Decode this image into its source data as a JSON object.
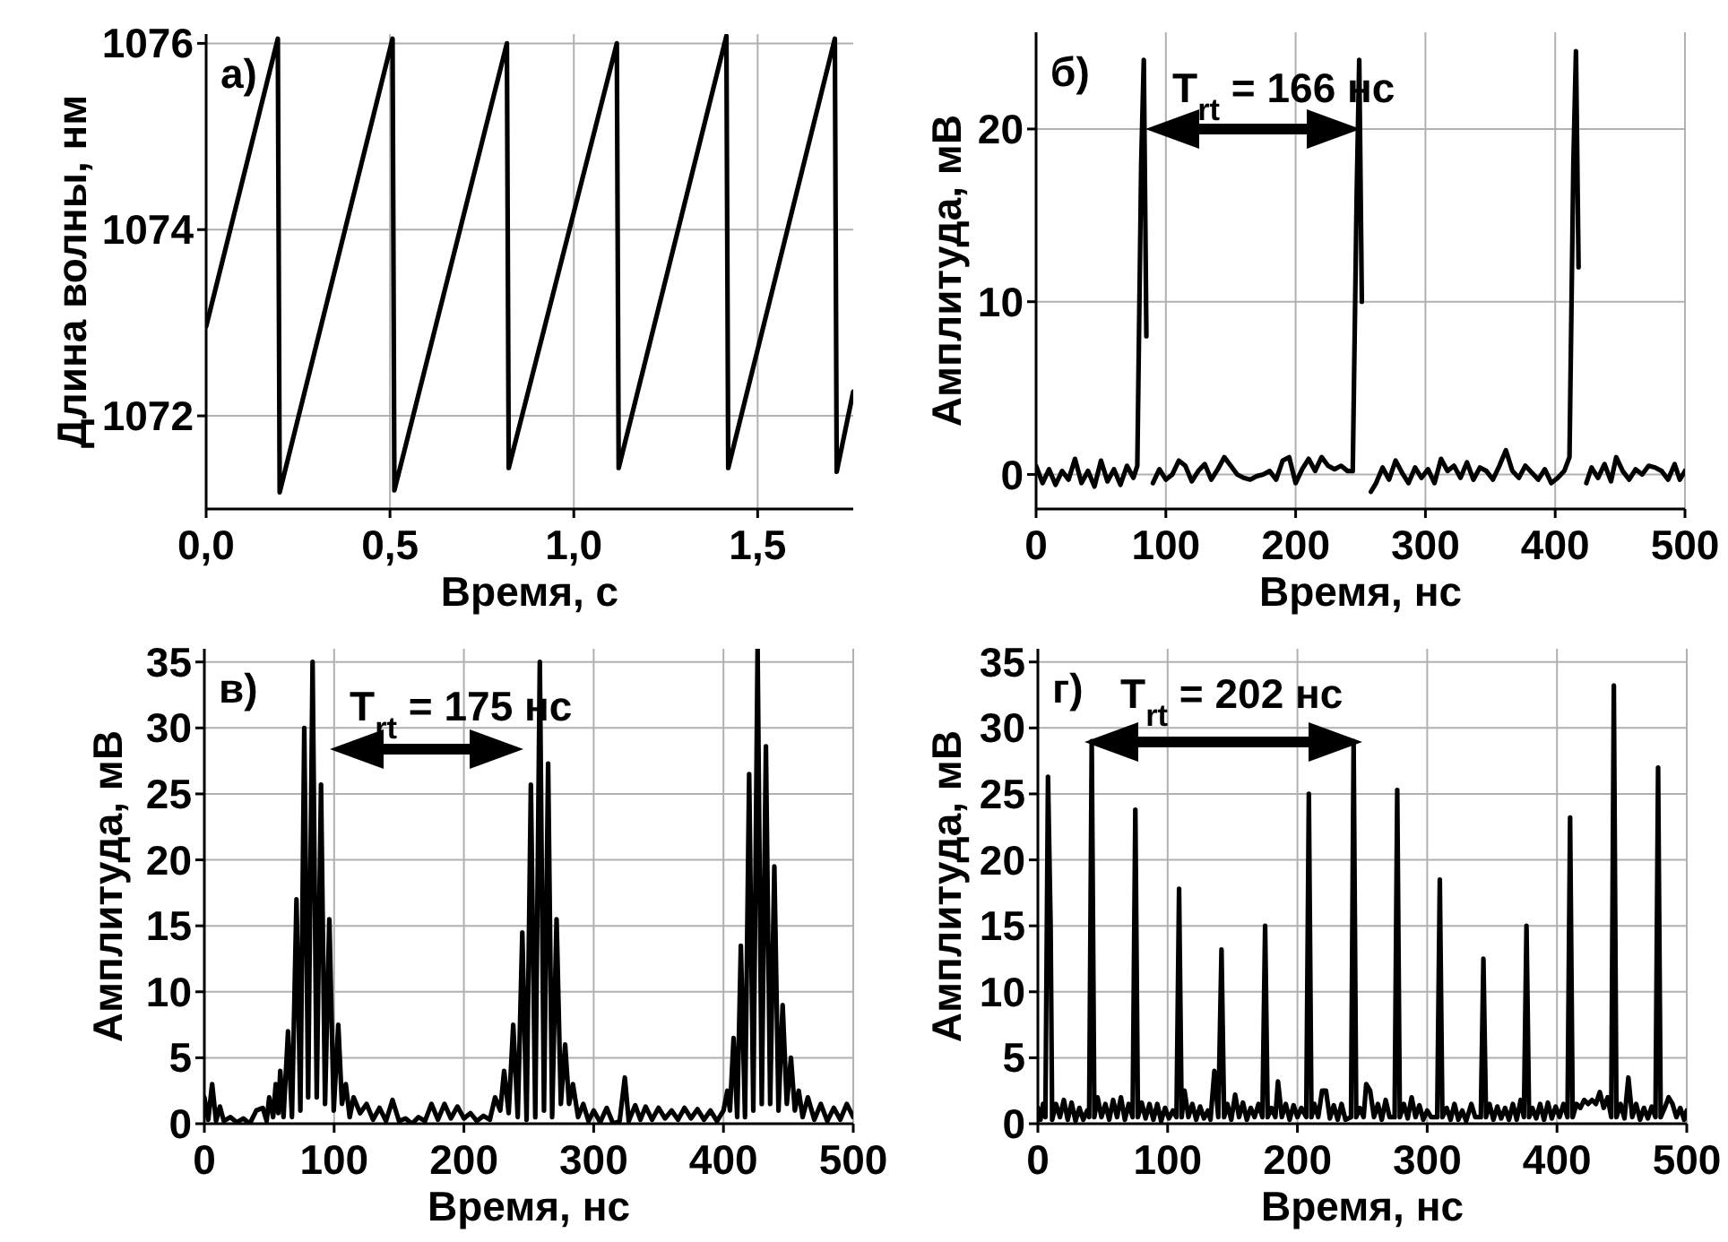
{
  "chart_data": [
    {
      "type": "line",
      "xlabel": "Время, с",
      "ylabel": "Длина волны, нм",
      "xlim": [
        0,
        1.76
      ],
      "ylim": [
        1071,
        1076.1
      ],
      "xticks": [
        {
          "value": 0,
          "label": "0,0"
        },
        {
          "value": 0.5,
          "label": "0,5"
        },
        {
          "value": 1,
          "label": "1,0"
        },
        {
          "value": 1.5,
          "label": "1,5"
        }
      ],
      "yticks": [
        1072,
        1074,
        1076
      ],
      "grid": true,
      "annotations": [
        "а)"
      ],
      "series": [
        {
          "color": "#000000",
          "x": [
            0,
            0.195,
            0.2,
            0.507,
            0.512,
            0.818,
            0.823,
            1.117,
            1.122,
            1.415,
            1.42,
            1.71,
            1.715,
            1.76
          ],
          "values": [
            1072.96,
            1076.05,
            1071.18,
            1076.05,
            1071.2,
            1076.0,
            1071.44,
            1076.0,
            1071.44,
            1076.08,
            1071.44,
            1076.05,
            1071.4,
            1072.26
          ]
        }
      ]
    },
    {
      "type": "line",
      "xlabel": "Время, нс",
      "ylabel": "Амплитуда, мВ",
      "xlim": [
        0,
        500
      ],
      "ylim": [
        -2,
        25.6
      ],
      "xticks": [
        0,
        100,
        200,
        300,
        400,
        500
      ],
      "yticks": [
        0,
        10,
        20
      ],
      "grid": true,
      "annotations": [
        "б)",
        "T$_{rt}$ = 166 нс"
      ],
      "series": [
        {
          "color": "#000000",
          "x": [
            0,
            5,
            10,
            15,
            20,
            25,
            30,
            35,
            40,
            45,
            50,
            55,
            60,
            65,
            70,
            75,
            78,
            81,
            83,
            85,
            87,
            90,
            95,
            100,
            105,
            110,
            115,
            120,
            125,
            130,
            135,
            140,
            145,
            150,
            155,
            160,
            165,
            170,
            175,
            180,
            185,
            190,
            195,
            200,
            205,
            210,
            215,
            220,
            225,
            230,
            235,
            240,
            244,
            247,
            249,
            251,
            254,
            258,
            262,
            267,
            272,
            277,
            282,
            287,
            292,
            297,
            302,
            307,
            312,
            317,
            322,
            327,
            332,
            337,
            342,
            347,
            352,
            357,
            362,
            367,
            372,
            377,
            382,
            387,
            392,
            397,
            402,
            407,
            411,
            414,
            416,
            418,
            420,
            424,
            428,
            433,
            438,
            443,
            447,
            452,
            457,
            462,
            467,
            472,
            477,
            482,
            487,
            492,
            496,
            500
          ],
          "values": [
            0.5,
            -0.5,
            0.3,
            -0.6,
            0.2,
            -0.3,
            0.9,
            -0.5,
            0.2,
            -0.7,
            0.8,
            -0.4,
            0.3,
            -0.6,
            0.5,
            -0.2,
            0.5,
            18,
            24,
            8,
            null,
            -0.5,
            0.3,
            -0.3,
            0,
            0.8,
            0.5,
            -0.4,
            0.2,
            0.6,
            -0.3,
            0.3,
            1,
            0.5,
            0,
            -0.2,
            -0.3,
            -0.1,
            0,
            0.2,
            -0.3,
            0.8,
            1,
            -0.5,
            0.3,
            0.9,
            0.2,
            1,
            0.5,
            0.3,
            0.5,
            0.2,
            0.2,
            16,
            24,
            10,
            null,
            -1,
            -0.5,
            0.4,
            -0.3,
            0.8,
            0.1,
            -0.5,
            0.4,
            -0.2,
            0.3,
            -0.5,
            0.9,
            0.2,
            0.5,
            -0.2,
            0.7,
            -0.3,
            0.4,
            0.2,
            -0.3,
            0.5,
            1.4,
            0.2,
            -0.2,
            0.5,
            0.1,
            -0.3,
            0.3,
            -0.5,
            -0.2,
            0.2,
            1,
            18,
            24.5,
            12,
            null,
            -0.5,
            0.4,
            -0.2,
            0.6,
            -0.4,
            1,
            0.2,
            -0.3,
            0.3,
            0,
            0.5,
            0.4,
            0.2,
            -0.3,
            0.6,
            -0.3,
            0.2
          ]
        }
      ]
    },
    {
      "type": "line",
      "xlabel": "Время, нс",
      "ylabel": "Амплитуда, мВ",
      "xlim": [
        0,
        500
      ],
      "ylim": [
        0,
        36
      ],
      "xticks": [
        0,
        100,
        200,
        300,
        400,
        500
      ],
      "yticks": [
        0,
        5,
        10,
        15,
        20,
        25,
        30,
        35
      ],
      "grid": true,
      "annotations": [
        "в)",
        "T$_{rt}$ = 175 нс"
      ],
      "series": [
        {
          "color": "#000000",
          "x": [
            0,
            3,
            6,
            9,
            12,
            15,
            20,
            25,
            30,
            35,
            40,
            45,
            48,
            50,
            53,
            55,
            57,
            58.5,
            61,
            64.5,
            67.5,
            71,
            74,
            77,
            80,
            83.4,
            86.6,
            89.9,
            93,
            96.3,
            99.7,
            103.2,
            106,
            109,
            112,
            115,
            120,
            125,
            130,
            135,
            140,
            145,
            150,
            155,
            160,
            165,
            170,
            175,
            180,
            185,
            190,
            195,
            200,
            205,
            210,
            215,
            220,
            224,
            228,
            231,
            234.5,
            238,
            241.5,
            245,
            248.3,
            251.6,
            255,
            258.5,
            261.7,
            264.9,
            268,
            271.4,
            274.7,
            278,
            281,
            284,
            288,
            292,
            296,
            300,
            305,
            310,
            315,
            320,
            324,
            327,
            332,
            336,
            340,
            345,
            350,
            355,
            360,
            365,
            370,
            375,
            380,
            385,
            390,
            395,
            400,
            403,
            405,
            407.8,
            410.6,
            413.4,
            416.6,
            419.8,
            423,
            426.3,
            429.5,
            432.7,
            436,
            439.2,
            442.4,
            445.6,
            448.8,
            452,
            455,
            458,
            461,
            465,
            470,
            475,
            480,
            485,
            490,
            495,
            500
          ],
          "values": [
            2,
            0.3,
            3,
            0.2,
            1.3,
            0.2,
            0.5,
            0.1,
            0.4,
            0,
            1,
            1.2,
            0.2,
            2,
            0.5,
            3,
            0.8,
            4,
            0.5,
            7,
            0.5,
            17,
            1,
            30,
            2,
            35,
            2,
            25.7,
            1.5,
            15.5,
            1,
            7.5,
            1.5,
            3,
            0.5,
            2,
            0.8,
            1.5,
            0.3,
            1.2,
            0.2,
            1.8,
            0.2,
            0.4,
            0,
            0.5,
            0.2,
            1.5,
            0.3,
            1.5,
            0.4,
            1.3,
            0.4,
            0.8,
            0.2,
            0.6,
            0.3,
            2,
            1,
            4,
            0.8,
            7.5,
            0.5,
            14.5,
            0.3,
            25.7,
            0.5,
            35,
            1,
            27.3,
            0.5,
            15.5,
            1.5,
            6,
            1.5,
            3,
            0.5,
            1.5,
            0.2,
            1,
            0.1,
            1.2,
            0,
            0.2,
            3.5,
            0.2,
            1.4,
            0.3,
            1.3,
            0.3,
            1.2,
            0.4,
            1,
            0.3,
            1.2,
            0.4,
            1.1,
            0.3,
            1,
            0.2,
            1,
            2.5,
            1,
            6.5,
            0.5,
            13.5,
            0.5,
            26.5,
            1,
            36,
            1.5,
            28.6,
            1.5,
            19.5,
            1,
            9,
            1.5,
            5,
            1,
            2.5,
            0.5,
            2,
            0.3,
            1.5,
            0.2,
            1.2,
            0.3,
            1.5,
            0.5
          ]
        }
      ]
    },
    {
      "type": "line",
      "xlabel": "Время, нс",
      "ylabel": "Амплитуда, мВ",
      "xlim": [
        0,
        500
      ],
      "ylim": [
        0,
        36
      ],
      "xticks": [
        0,
        100,
        200,
        300,
        400,
        500
      ],
      "yticks": [
        0,
        5,
        10,
        15,
        20,
        25,
        30,
        35
      ],
      "grid": true,
      "annotations": [
        "г)",
        "T$_{rt}$ = 202 нс"
      ],
      "series": [
        {
          "color": "#000000",
          "x": [
            0,
            2,
            4,
            5.8,
            7.8,
            9.8,
            11,
            14,
            17,
            20,
            23,
            26,
            29,
            32,
            35,
            38,
            39.5,
            41.5,
            43.5,
            46,
            49,
            52,
            55,
            58,
            61,
            64,
            67,
            70,
            73,
            75.1,
            77.1,
            80,
            83,
            86,
            89,
            92,
            95,
            98,
            101,
            104,
            106.8,
            108.8,
            110.8,
            113,
            116,
            119,
            122,
            125,
            128,
            131,
            133,
            136,
            139,
            141.5,
            143.5,
            146,
            149,
            152,
            155,
            158,
            161,
            164,
            167,
            170,
            173,
            175.1,
            177.1,
            180,
            183,
            185,
            188,
            191,
            194,
            197,
            200,
            203,
            206.8,
            208.8,
            210.8,
            213,
            216,
            219,
            222,
            225,
            228,
            231,
            234,
            237,
            241.3,
            243.3,
            245.3,
            248,
            251,
            253,
            256,
            259,
            262,
            265,
            268,
            271,
            274.9,
            276.9,
            278.9,
            282,
            285,
            288,
            291,
            294,
            297,
            300,
            303,
            307.7,
            309.7,
            311.7,
            315,
            318,
            321,
            324,
            327,
            330,
            334,
            337,
            341.3,
            343.3,
            345.3,
            348,
            351,
            354,
            357,
            360,
            363,
            366,
            369,
            372,
            374.5,
            376.5,
            378.5,
            381,
            384,
            387,
            390,
            393,
            396,
            399,
            402,
            405,
            408.1,
            410.1,
            412.1,
            415,
            418,
            421,
            424,
            427,
            430,
            433,
            436,
            439,
            441.8,
            443.8,
            445.8,
            449,
            452,
            455,
            458,
            461,
            464,
            467,
            470,
            473,
            475.9,
            477.9,
            479.9,
            483,
            486,
            489,
            492,
            495,
            498,
            500
          ],
          "values": [
            1.2,
            0.3,
            1.5,
            0.5,
            26.3,
            15,
            0.3,
            1.5,
            0.5,
            1.8,
            0.3,
            1.6,
            0.2,
            1.2,
            0.3,
            1,
            0.5,
            29,
            0.5,
            2,
            0.5,
            1.5,
            0.3,
            1.8,
            0.5,
            2,
            0.3,
            1.5,
            0.5,
            23.8,
            0.5,
            1.6,
            0.4,
            1.5,
            0.3,
            1.5,
            0.2,
            1.2,
            0.4,
            1,
            0.5,
            17.8,
            0.5,
            2.5,
            0.5,
            1.5,
            0.3,
            1.3,
            0.4,
            1,
            0.3,
            4,
            0.5,
            13.2,
            0.5,
            1.5,
            0.3,
            2.2,
            0.5,
            1.6,
            0.3,
            1.2,
            0.5,
            1.5,
            0.5,
            15,
            0.5,
            1.2,
            0.5,
            3.2,
            0.5,
            1.5,
            0.3,
            1.4,
            0.5,
            1.2,
            0.5,
            25,
            0.5,
            1.5,
            0.5,
            2.5,
            2.5,
            0.4,
            1.4,
            0.3,
            1.5,
            0.3,
            0.5,
            29,
            0.5,
            1.2,
            0.5,
            3,
            2.5,
            0.5,
            1.5,
            0.3,
            1.8,
            0.5,
            0.5,
            25.3,
            0.5,
            1.5,
            0.4,
            2,
            0.5,
            1.4,
            0.3,
            1,
            0.5,
            0.5,
            18.5,
            0.5,
            1.2,
            0.3,
            1.5,
            0.3,
            1,
            0.2,
            1.5,
            0.5,
            0.5,
            12.5,
            0.5,
            1.5,
            0.3,
            1.3,
            0.4,
            1.2,
            0.3,
            1.5,
            0.3,
            1.8,
            0.5,
            15,
            0.5,
            1.2,
            0.4,
            1.5,
            0.3,
            1.6,
            0.4,
            1.3,
            0.5,
            1.5,
            0.5,
            23.2,
            0.5,
            1.5,
            1.2,
            1.8,
            1.5,
            1.8,
            1.5,
            2.4,
            1.2,
            2,
            0.5,
            33.2,
            0.5,
            1.5,
            0.4,
            3.5,
            0.5,
            1.5,
            0.3,
            1.2,
            0.4,
            1.3,
            0.5,
            27,
            0.5,
            1.2,
            2,
            1.5,
            0.5,
            1.2,
            0.3,
            1
          ]
        }
      ]
    }
  ]
}
